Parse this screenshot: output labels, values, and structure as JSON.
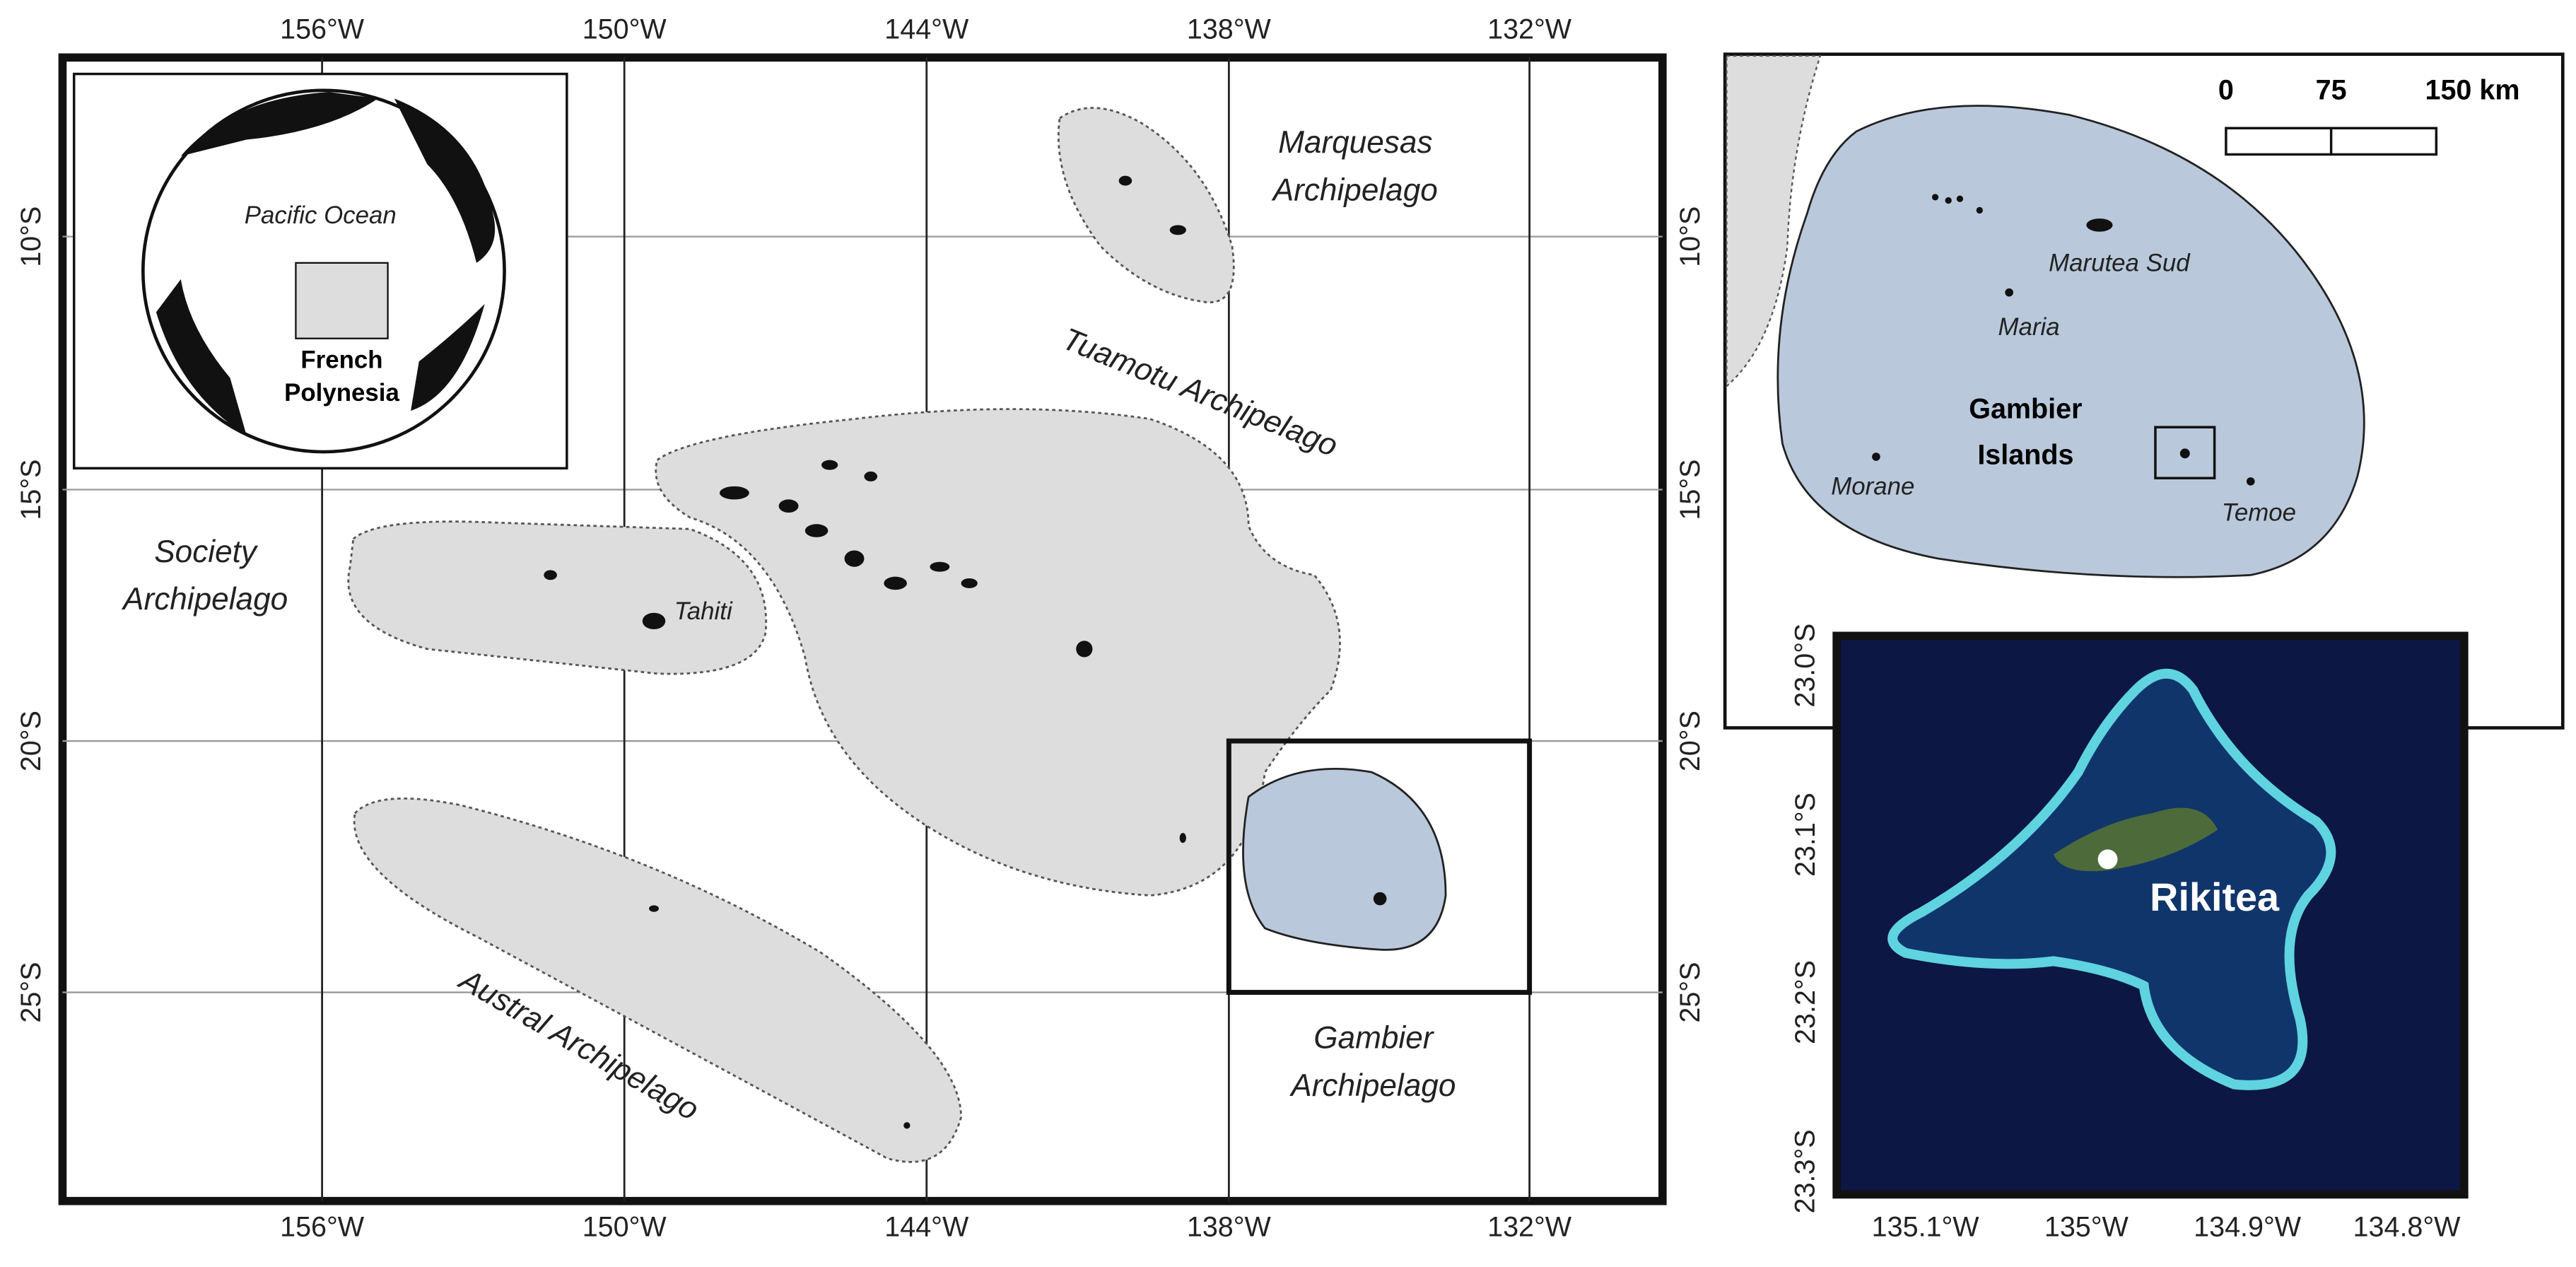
{
  "main_map": {
    "lon_labels": [
      "156°W",
      "150°W",
      "144°W",
      "138°W",
      "132°W"
    ],
    "lat_labels": [
      "10°S",
      "15°S",
      "20°S",
      "25°S"
    ],
    "regions": {
      "marquesas": [
        "Marquesas",
        "Archipelago"
      ],
      "tuamotu": "Tuamotu Archipelago",
      "society": [
        "Society",
        "Archipelago"
      ],
      "tahiti": "Tahiti",
      "austral": "Austral Archipelago",
      "gambier": [
        "Gambier",
        "Archipelago"
      ]
    }
  },
  "globe_inset": {
    "ocean": "Pacific Ocean",
    "country": [
      "French",
      "Polynesia"
    ]
  },
  "gambier_inset": {
    "scale_labels": [
      "0",
      "75",
      "150 km"
    ],
    "islands": {
      "marutea_sud": "Marutea Sud",
      "maria": "Maria",
      "morane": "Morane",
      "temoe": "Temoe"
    },
    "group": [
      "Gambier",
      "Islands"
    ]
  },
  "satellite_inset": {
    "lat_labels": [
      "23.0°S",
      "23.1°S",
      "23.2°S",
      "23.3°S"
    ],
    "lon_labels": [
      "135.1°W",
      "135°W",
      "134.9°W",
      "134.8°W"
    ],
    "town": "Rikitea"
  }
}
